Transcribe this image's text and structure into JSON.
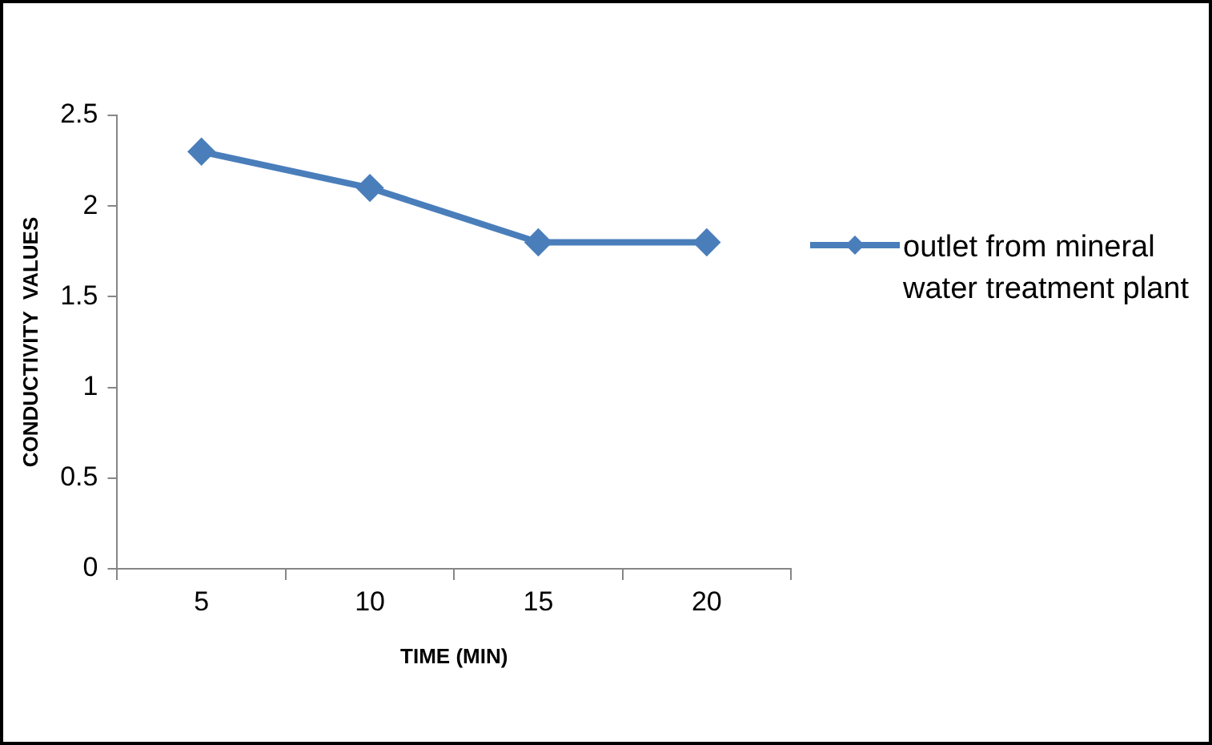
{
  "chart_data": {
    "type": "line",
    "xlabel": "TIME (MIN)",
    "ylabel": "CONDUCTIVITY  VALUES",
    "categories": [
      "5",
      "10",
      "15",
      "20"
    ],
    "series": [
      {
        "name": "outlet from mineral water treatment plant",
        "color": "#4a7ebb",
        "values": [
          2.3,
          2.1,
          1.8,
          1.8
        ]
      }
    ],
    "ylim": [
      0,
      2.5
    ],
    "yticks": [
      0,
      0.5,
      1,
      1.5,
      2,
      2.5
    ],
    "grid": false,
    "legend": "right",
    "marker": "diamond",
    "line_style": "solid"
  }
}
